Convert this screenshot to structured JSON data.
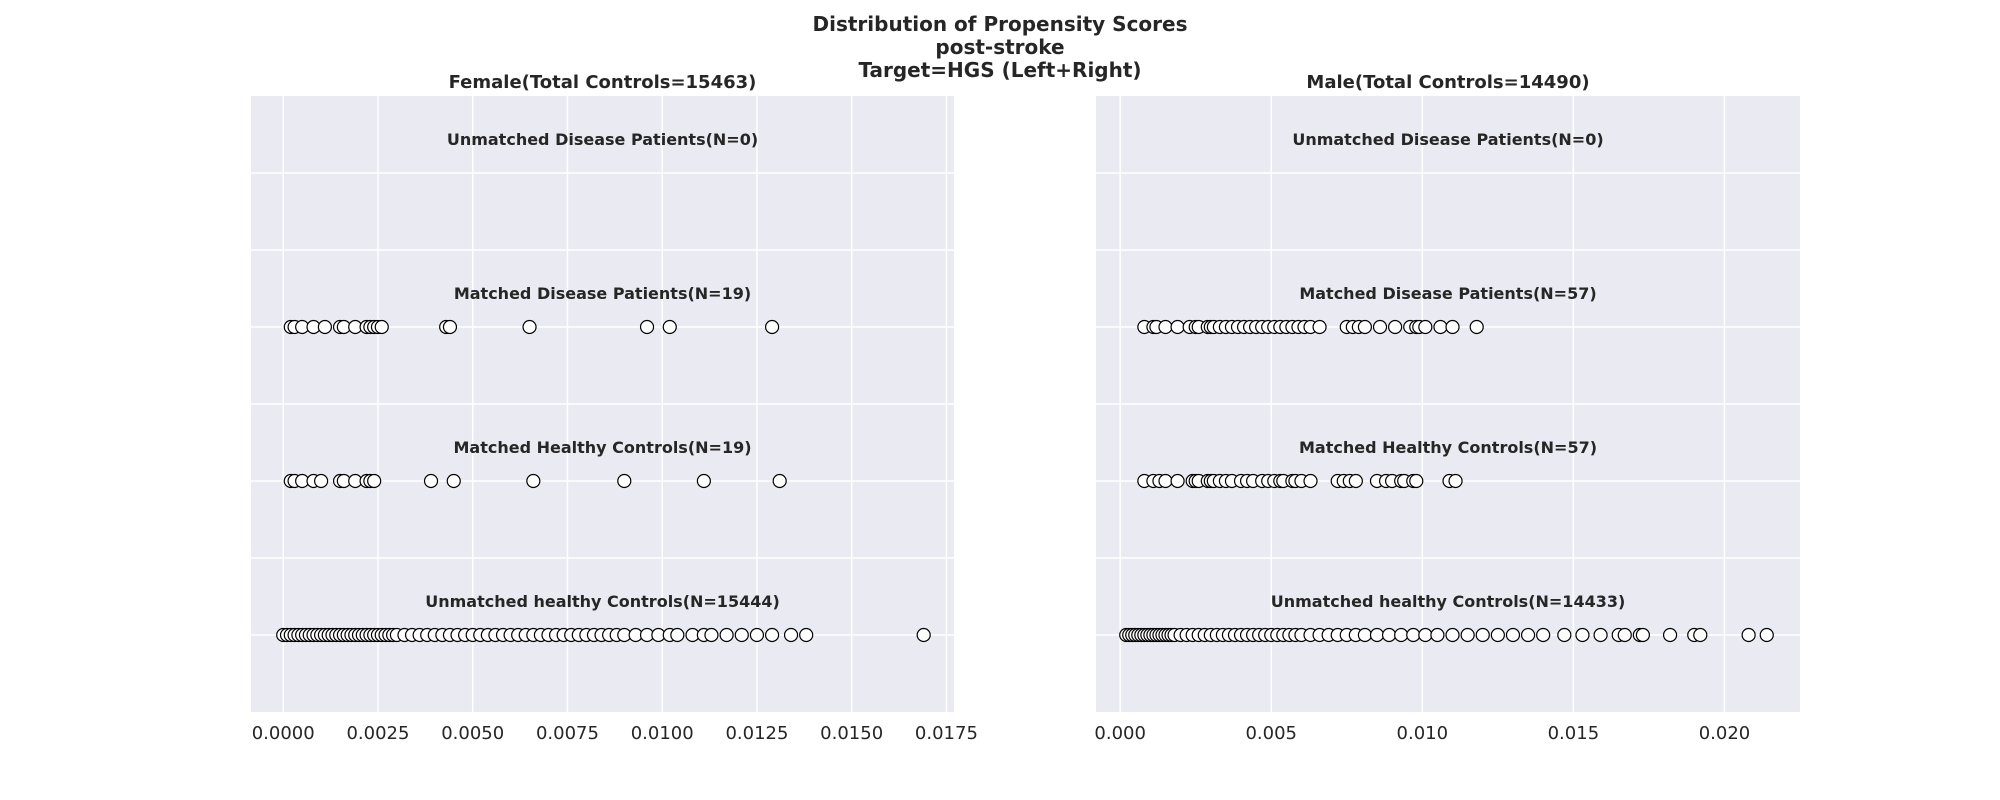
{
  "chart_data": {
    "type": "scatter",
    "title_lines": [
      "Distribution of Propensity Scores",
      "post-stroke",
      "Target=HGS (Left+Right)"
    ],
    "grid": true,
    "legend": "none",
    "panels": [
      {
        "title": "Female(Total Controls=15463)",
        "xlim": [
          -0.00085,
          0.0177
        ],
        "xticks": [
          0.0,
          0.0025,
          0.005,
          0.0075,
          0.01,
          0.0125,
          0.015,
          0.0175
        ],
        "xtick_labels": [
          "0.0000",
          "0.0025",
          "0.0050",
          "0.0075",
          "0.0100",
          "0.0125",
          "0.0150",
          "0.0175"
        ],
        "groups": [
          {
            "label": "Unmatched Disease Patients(N=0)",
            "values": []
          },
          {
            "label": "Matched Disease Patients(N=19)",
            "values": [
              0.0002,
              0.0003,
              0.0005,
              0.0008,
              0.0011,
              0.0015,
              0.0016,
              0.0019,
              0.0022,
              0.0023,
              0.0024,
              0.0025,
              0.0026,
              0.0043,
              0.0044,
              0.0065,
              0.0096,
              0.0102,
              0.0129
            ]
          },
          {
            "label": "Matched Healthy Controls(N=19)",
            "values": [
              0.0002,
              0.0003,
              0.0005,
              0.0008,
              0.001,
              0.0015,
              0.0016,
              0.0019,
              0.0022,
              0.0023,
              0.0024,
              0.0039,
              0.0045,
              0.0066,
              0.009,
              0.0111,
              0.0131
            ]
          },
          {
            "label": "Unmatched healthy Controls(N=15444)",
            "values": [
              0.0,
              0.0001,
              0.0002,
              0.0003,
              0.0004,
              0.0005,
              0.0006,
              0.0007,
              0.0008,
              0.0009,
              0.001,
              0.0011,
              0.0012,
              0.0013,
              0.0014,
              0.0015,
              0.0016,
              0.0017,
              0.0018,
              0.0019,
              0.002,
              0.0021,
              0.0022,
              0.0023,
              0.0024,
              0.0025,
              0.0026,
              0.0027,
              0.0028,
              0.0029,
              0.003,
              0.0032,
              0.0034,
              0.0036,
              0.0038,
              0.004,
              0.0042,
              0.0044,
              0.0046,
              0.0048,
              0.005,
              0.0052,
              0.0054,
              0.0056,
              0.0058,
              0.006,
              0.0062,
              0.0064,
              0.0066,
              0.0068,
              0.007,
              0.0072,
              0.0074,
              0.0076,
              0.0078,
              0.008,
              0.0082,
              0.0084,
              0.0086,
              0.0088,
              0.009,
              0.0093,
              0.0096,
              0.0099,
              0.0102,
              0.0104,
              0.0108,
              0.0111,
              0.0113,
              0.0117,
              0.0121,
              0.0125,
              0.0129,
              0.0134,
              0.0138,
              0.0169
            ]
          }
        ]
      },
      {
        "title": "Male(Total Controls=14490)",
        "xlim": [
          -0.0008,
          0.0225
        ],
        "xticks": [
          0.0,
          0.005,
          0.01,
          0.015,
          0.02
        ],
        "xtick_labels": [
          "0.000",
          "0.005",
          "0.010",
          "0.015",
          "0.020"
        ],
        "groups": [
          {
            "label": "Unmatched Disease Patients(N=0)",
            "values": []
          },
          {
            "label": "Matched Disease Patients(N=57)",
            "values": [
              0.0008,
              0.0011,
              0.0012,
              0.0015,
              0.0019,
              0.0023,
              0.0025,
              0.0026,
              0.0029,
              0.003,
              0.0031,
              0.0033,
              0.0035,
              0.0037,
              0.0039,
              0.0041,
              0.0043,
              0.0045,
              0.0047,
              0.0049,
              0.0051,
              0.0053,
              0.0055,
              0.0057,
              0.0059,
              0.0061,
              0.0063,
              0.0066,
              0.0075,
              0.0077,
              0.0079,
              0.0081,
              0.0086,
              0.0091,
              0.0096,
              0.0098,
              0.0099,
              0.0101,
              0.0106,
              0.011,
              0.0118
            ]
          },
          {
            "label": "Matched Healthy Controls(N=57)",
            "values": [
              0.0008,
              0.0011,
              0.0013,
              0.0015,
              0.0019,
              0.0024,
              0.0025,
              0.0026,
              0.0029,
              0.003,
              0.0031,
              0.0033,
              0.0035,
              0.0037,
              0.004,
              0.0042,
              0.0044,
              0.0047,
              0.0049,
              0.0051,
              0.0053,
              0.0054,
              0.0057,
              0.0058,
              0.006,
              0.0063,
              0.0072,
              0.0074,
              0.0076,
              0.0078,
              0.0085,
              0.0088,
              0.009,
              0.0093,
              0.0094,
              0.0097,
              0.0098,
              0.0109,
              0.0111
            ]
          },
          {
            "label": "Unmatched healthy Controls(N=14433)",
            "values": [
              0.0002,
              0.0003,
              0.0004,
              0.0005,
              0.0006,
              0.0007,
              0.0008,
              0.0009,
              0.001,
              0.0011,
              0.0012,
              0.0013,
              0.0014,
              0.0015,
              0.0016,
              0.0017,
              0.0018,
              0.002,
              0.0022,
              0.0024,
              0.0026,
              0.0028,
              0.003,
              0.0032,
              0.0034,
              0.0036,
              0.0038,
              0.004,
              0.0042,
              0.0044,
              0.0046,
              0.0048,
              0.005,
              0.0052,
              0.0054,
              0.0056,
              0.0058,
              0.006,
              0.0063,
              0.0066,
              0.0069,
              0.0072,
              0.0075,
              0.0078,
              0.0081,
              0.0085,
              0.0089,
              0.0093,
              0.0097,
              0.0101,
              0.0105,
              0.011,
              0.0115,
              0.012,
              0.0125,
              0.013,
              0.0135,
              0.014,
              0.0147,
              0.0153,
              0.0159,
              0.0165,
              0.0167,
              0.0172,
              0.0173,
              0.0182,
              0.019,
              0.0192,
              0.0208,
              0.0214
            ]
          }
        ]
      }
    ]
  }
}
